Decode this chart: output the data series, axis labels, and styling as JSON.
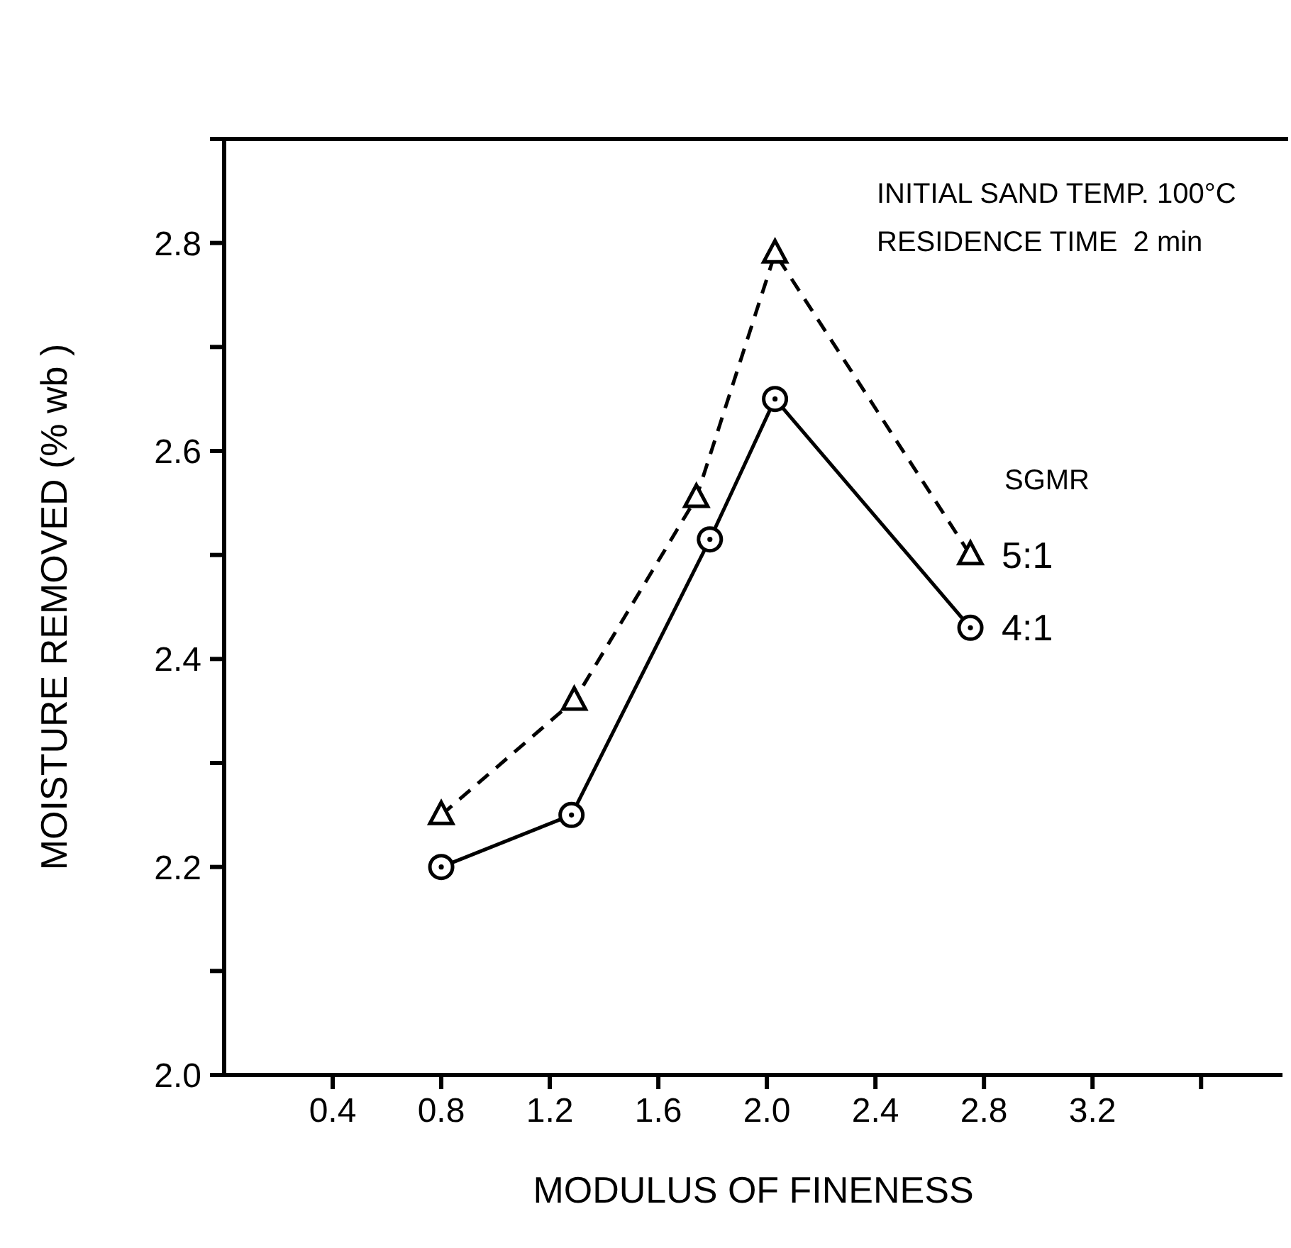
{
  "chart_data": {
    "type": "line",
    "xlabel": "MODULUS  OF  FINENESS",
    "ylabel": "MOISTURE  REMOVED  (% wb )",
    "legend_title": "SGMR",
    "legend": false,
    "annotations": [
      "INITIAL SAND TEMP. 100°C",
      "RESIDENCE TIME  2 min"
    ],
    "xlim": [
      0,
      3.9
    ],
    "xticks": [
      0.4,
      0.8,
      1.2,
      1.6,
      {
        "value": 2,
        "label": "2.0"
      },
      2.4,
      2.8,
      3.2,
      {
        "value": 3.6,
        "label": null
      }
    ],
    "ylim": [
      2.0,
      2.9
    ],
    "yticks": [
      {
        "value": 2,
        "label": "2.0"
      },
      {
        "value": 2.1,
        "label": null
      },
      2.2,
      {
        "value": 2.3,
        "label": null
      },
      2.4,
      {
        "value": 2.5,
        "label": null
      },
      2.6,
      {
        "value": 2.7,
        "label": null
      },
      2.8
    ],
    "series": [
      {
        "name": "5:1",
        "color": "#000000",
        "marker": "triangle",
        "line_style": "dashed",
        "x": [
          0.8,
          1.29,
          1.74,
          2.03,
          2.75
        ],
        "values": [
          2.25,
          2.36,
          2.555,
          2.79,
          2.5
        ]
      },
      {
        "name": "4:1",
        "color": "#000000",
        "marker": "circle",
        "line_style": "solid",
        "x": [
          0.8,
          1.28,
          1.79,
          2.03,
          2.75
        ],
        "values": [
          2.2,
          2.25,
          2.515,
          2.65,
          2.43
        ]
      }
    ]
  }
}
